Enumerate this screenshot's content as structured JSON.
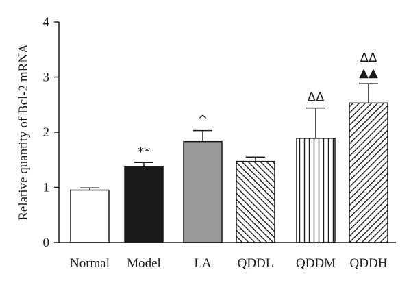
{
  "chart_data": {
    "type": "bar",
    "title": "",
    "xlabel": "",
    "ylabel": "Relative quantity of Bcl-2 mRNA",
    "ylim": [
      0,
      4
    ],
    "yticks": [
      "0",
      "1",
      "2",
      "3",
      "4"
    ],
    "grid": false,
    "legend": "none",
    "categories": [
      "Normal",
      "Model",
      "LA",
      "QDDL",
      "QDDM",
      "QDDH"
    ],
    "values": [
      0.95,
      1.37,
      1.83,
      1.47,
      1.89,
      2.53
    ],
    "errors": [
      0.04,
      0.08,
      0.2,
      0.08,
      0.55,
      0.35
    ],
    "bar_styles": [
      "white",
      "black",
      "gray",
      "diagonal-down",
      "vertical",
      "diagonal-up"
    ],
    "annotations": [
      {
        "category": "Model",
        "lines": [
          "**"
        ]
      },
      {
        "category": "LA",
        "lines": [
          "^"
        ]
      },
      {
        "category": "QDDM",
        "lines": [
          "ΔΔ"
        ]
      },
      {
        "category": "QDDH",
        "lines": [
          "ΔΔ",
          "▲▲"
        ]
      }
    ]
  }
}
